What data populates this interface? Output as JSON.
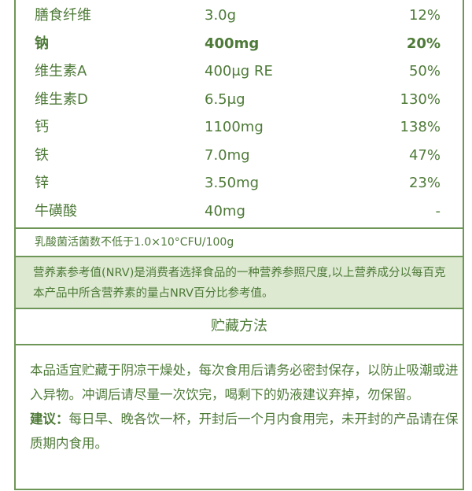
{
  "nutrition_rows": [
    {
      "name": "膳食纤维",
      "value": "3.0g",
      "nrv": "12%",
      "bold": false
    },
    {
      "name": "钠",
      "value": "400mg",
      "nrv": "20%",
      "bold": true
    },
    {
      "name": "维生素A",
      "value": "400μg RE",
      "nrv": "50%",
      "bold": false
    },
    {
      "name": "维生素D",
      "value": "6.5μg",
      "nrv": "130%",
      "bold": false
    },
    {
      "name": "钙",
      "value": "1100mg",
      "nrv": "138%",
      "bold": false
    },
    {
      "name": "铁",
      "value": "7.0mg",
      "nrv": "47%",
      "bold": false
    },
    {
      "name": "锌",
      "value": "3.50mg",
      "nrv": "23%",
      "bold": false
    },
    {
      "name": "牛磺酸",
      "value": "40mg",
      "nrv": "-",
      "bold": false
    }
  ],
  "lactic_note": "乳酸菌活菌数不低于1.0×10°CFU/100g",
  "nrv_note": "营养素参考值(NRV)是消费者选择食品的一种营养参照尺度,以上营养成分以每百克本产品中所含营养素的量占NRV百分比参考值。",
  "storage": {
    "title": "贮藏方法",
    "text": "本品适宜贮藏于阴凉干燥处，每次食用后请务必密封保存，以防止吸潮或进入异物。冲调后请尽量一次饮完，喝剩下的奶液建议弃掉，勿保留。",
    "advice_label": "建议：",
    "advice_text": "每日早、晚各饮一杯，开封后一个月内食用完，未开封的产品请在保质期内食用。"
  },
  "colors": {
    "text": "#4e7a38",
    "border": "#6f9659",
    "highlight_bg": "#dde9d1"
  }
}
